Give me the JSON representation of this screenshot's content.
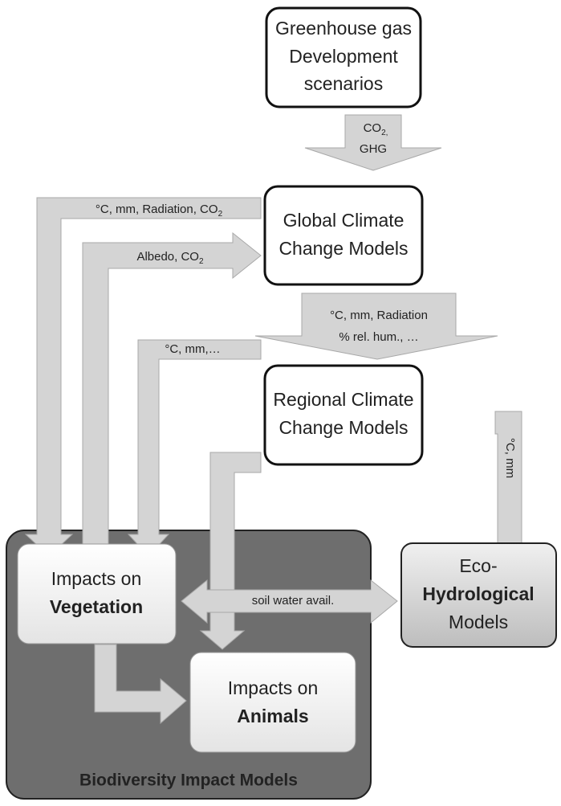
{
  "nodes": [
    {
      "lines": [
        "Greenhouse gas",
        "Development",
        "scenarios"
      ]
    },
    {
      "lines": [
        "Global Climate",
        "Change Models"
      ]
    },
    {
      "lines": [
        "Regional Climate",
        "Change Models"
      ]
    },
    {
      "lines": [
        "Impacts on",
        "Vegetation"
      ]
    },
    {
      "lines": [
        "Impacts on",
        "Animals"
      ]
    },
    {
      "lines": [
        "Eco-",
        "Hydrological",
        "Models"
      ]
    }
  ],
  "group": {
    "label": "Biodiversity Impact Models"
  },
  "edges": [
    {
      "lines": [
        {
          "text": "CO",
          "sub": "2,"
        },
        {
          "text": "GHG"
        }
      ]
    },
    {
      "lines": [
        {
          "text": "°C, mm, Radiation, CO",
          "sub": "2"
        }
      ]
    },
    {
      "lines": [
        {
          "text": "Albedo, CO",
          "sub": "2"
        }
      ]
    },
    {
      "lines": [
        {
          "text": "°C, mm, Radiation"
        },
        {
          "text": "% rel. hum., …"
        }
      ]
    },
    {
      "lines": [
        {
          "text": "°C, mm,…"
        }
      ]
    },
    {
      "lines": [
        {
          "text": "°C, mm"
        }
      ]
    },
    {
      "lines": [
        {
          "text": "soil water avail."
        }
      ]
    }
  ]
}
